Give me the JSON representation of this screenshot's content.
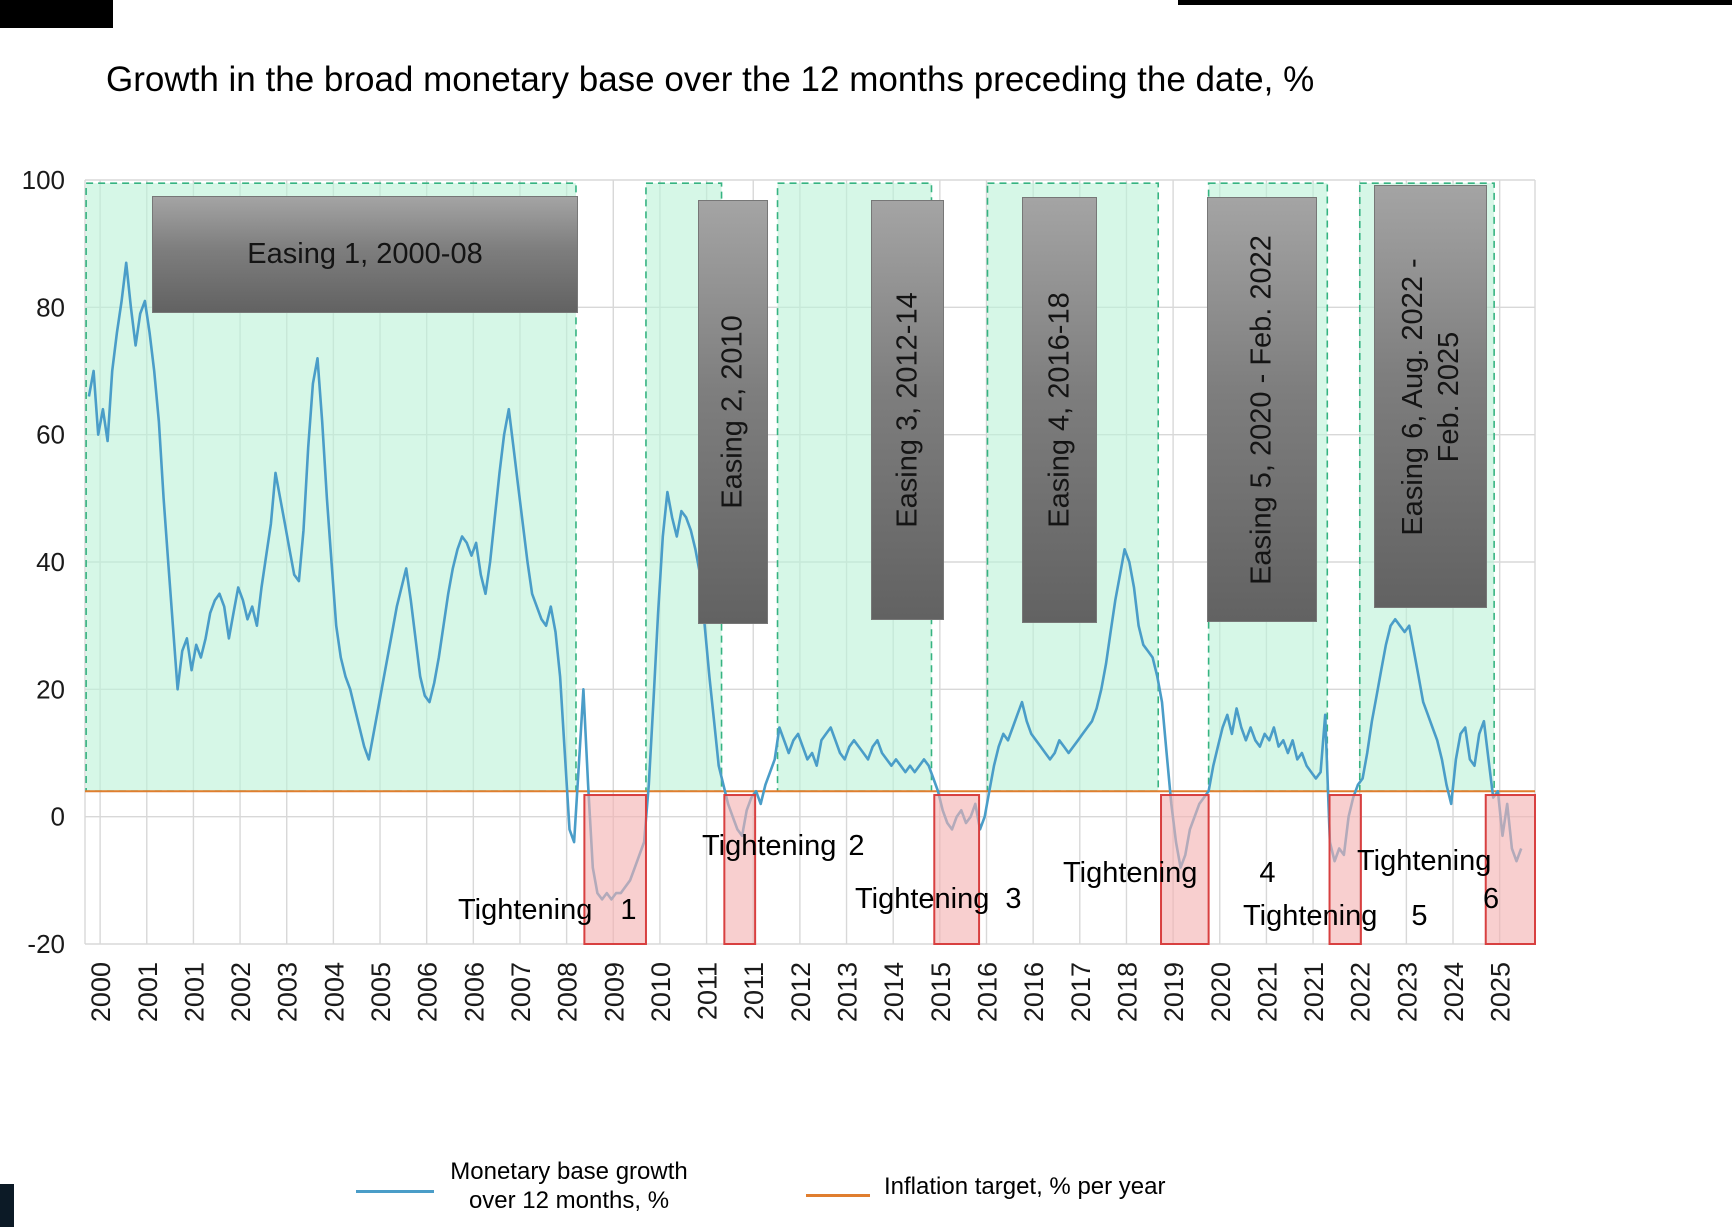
{
  "title": "Growth in the broad monetary base over the 12 months preceding the date, %",
  "legend": {
    "series1_line1": "Monetary base growth",
    "series1_line2": "over 12 months, %",
    "series2_label": "Inflation target, % per year"
  },
  "colors": {
    "line_blue": "#4a9dc8",
    "line_orange": "#e07e2e",
    "easing_fill": "#c6f3dd",
    "easing_border": "#36b381",
    "tightening_fill": "#f6c2c2",
    "tightening_border": "#d84040",
    "grid": "#d8d8d8",
    "label_box_gray": "#7e7e7e"
  },
  "chart_data": {
    "type": "line",
    "title": "Growth in the broad monetary base over the 12 months preceding the date, %",
    "xlabel": "",
    "ylabel": "",
    "grid": true,
    "legend_position": "bottom",
    "ylim": [
      -20,
      100
    ],
    "xlim": [
      1999.93,
      2025.83
    ],
    "y_ticks": [
      100,
      80,
      60,
      40,
      20,
      0,
      -20
    ],
    "x_tick_start": 2000.2,
    "x_tick_step": 0.8333,
    "x_tick_labels": [
      "2000",
      "2001",
      "2001",
      "2002",
      "2003",
      "2004",
      "2005",
      "2006",
      "2006",
      "2007",
      "2008",
      "2009",
      "2010",
      "2011",
      "2011",
      "2012",
      "2013",
      "2014",
      "2015",
      "2016",
      "2016",
      "2017",
      "2018",
      "2019",
      "2020",
      "2021",
      "2021",
      "2022",
      "2023",
      "2024",
      "2025"
    ],
    "series": [
      {
        "id": "monetary-base-growth",
        "name": "Monetary base growth over 12 months, %",
        "color": "#4a9dc8",
        "width": 2.6,
        "start_year": 2000,
        "values_monthly": [
          66,
          70,
          60,
          64,
          59,
          70,
          76,
          81,
          87,
          80,
          74,
          79,
          81,
          76,
          70,
          62,
          50,
          40,
          30,
          20,
          26,
          28,
          23,
          27,
          25,
          28,
          32,
          34,
          35,
          33,
          28,
          32,
          36,
          34,
          31,
          33,
          30,
          36,
          41,
          46,
          54,
          50,
          46,
          42,
          38,
          37,
          45,
          58,
          68,
          72,
          62,
          50,
          40,
          30,
          25,
          22,
          20,
          17,
          14,
          11,
          9,
          13,
          17,
          21,
          25,
          29,
          33,
          36,
          39,
          34,
          28,
          22,
          19,
          18,
          21,
          25,
          30,
          35,
          39,
          42,
          44,
          43,
          41,
          43,
          38,
          35,
          40,
          47,
          54,
          60,
          64,
          58,
          52,
          46,
          40,
          35,
          33,
          31,
          30,
          33,
          29,
          22,
          10,
          -2,
          -4,
          8,
          20,
          5,
          -8,
          -12,
          -13,
          -12,
          -13,
          -12,
          -12,
          -11,
          -10,
          -8,
          -6,
          -4,
          5,
          18,
          32,
          44,
          51,
          47,
          44,
          48,
          47,
          45,
          42,
          38,
          30,
          22,
          15,
          8,
          5,
          2,
          0,
          -2,
          -3,
          1,
          3,
          4,
          2,
          5,
          7,
          9,
          14,
          12,
          10,
          12,
          13,
          11,
          9,
          10,
          8,
          12,
          13,
          14,
          12,
          10,
          9,
          11,
          12,
          11,
          10,
          9,
          11,
          12,
          10,
          9,
          8,
          9,
          8,
          7,
          8,
          7,
          8,
          9,
          8,
          6,
          4,
          1,
          -1,
          -2,
          0,
          1,
          -1,
          0,
          2,
          -2,
          0,
          4,
          8,
          11,
          13,
          12,
          14,
          16,
          18,
          15,
          13,
          12,
          11,
          10,
          9,
          10,
          12,
          11,
          10,
          11,
          12,
          13,
          14,
          15,
          17,
          20,
          24,
          29,
          34,
          38,
          42,
          40,
          36,
          30,
          27,
          26,
          25,
          22,
          18,
          10,
          2,
          -4,
          -8,
          -6,
          -2,
          0,
          2,
          3,
          4,
          8,
          11,
          14,
          16,
          13,
          17,
          14,
          12,
          14,
          12,
          11,
          13,
          12,
          14,
          11,
          12,
          10,
          12,
          9,
          10,
          8,
          7,
          6,
          7,
          16,
          -4,
          -7,
          -5,
          -6,
          0,
          3,
          5,
          6,
          10,
          15,
          19,
          23,
          27,
          30,
          31,
          30,
          29,
          30,
          26,
          22,
          18,
          16,
          14,
          12,
          9,
          5,
          2,
          9,
          13,
          14,
          9,
          8,
          13,
          15,
          9,
          3,
          4,
          -3,
          2,
          -5,
          -7,
          -5
        ]
      },
      {
        "id": "inflation-target",
        "name": "Inflation target, % per year",
        "color": "#e07e2e",
        "width": 2,
        "points": [
          [
            1999.93,
            4
          ],
          [
            2025.83,
            4
          ]
        ]
      }
    ],
    "easing_regions": [
      {
        "label": "Easing 1, 2000-08",
        "x0": 1999.95,
        "x1": 2008.7,
        "y0": 4,
        "y1": 99.5
      },
      {
        "label": "Easing 2, 2010",
        "x0": 2009.95,
        "x1": 2011.3,
        "y0": 4,
        "y1": 99.5
      },
      {
        "label": "Easing 3, 2012-14",
        "x0": 2012.3,
        "x1": 2015.05,
        "y0": 4,
        "y1": 99.5
      },
      {
        "label": "Easing 4, 2016-18",
        "x0": 2016.05,
        "x1": 2019.1,
        "y0": 4,
        "y1": 99.5
      },
      {
        "label": "Easing 5, 2020 - Feb. 2022",
        "x0": 2020.0,
        "x1": 2022.12,
        "y0": 4,
        "y1": 99.5
      },
      {
        "label": "Easing 6, Aug. 2022 - Feb. 2025",
        "x0": 2022.7,
        "x1": 2025.1,
        "y0": 4,
        "y1": 99.5
      }
    ],
    "tightening_regions": [
      {
        "word": "Tightening",
        "num": "1",
        "x0": 2008.85,
        "x1": 2009.95,
        "y0": -20,
        "y1": 3.4
      },
      {
        "word": "Tightening",
        "num": "2",
        "x0": 2011.35,
        "x1": 2011.9,
        "y0": -20,
        "y1": 3.4
      },
      {
        "word": "Tightening",
        "num": "3",
        "x0": 2015.1,
        "x1": 2015.9,
        "y0": -20,
        "y1": 3.4
      },
      {
        "word": "Tightening",
        "num": "4",
        "x0": 2019.15,
        "x1": 2020.0,
        "y0": -20,
        "y1": 3.4
      },
      {
        "word": "Tightening",
        "num": "5",
        "x0": 2022.16,
        "x1": 2022.72,
        "y0": -20,
        "y1": 3.4
      },
      {
        "word": "Tightening",
        "num": "6",
        "x0": 2024.95,
        "x1": 2025.83,
        "y0": -20,
        "y1": 3.4
      }
    ]
  }
}
